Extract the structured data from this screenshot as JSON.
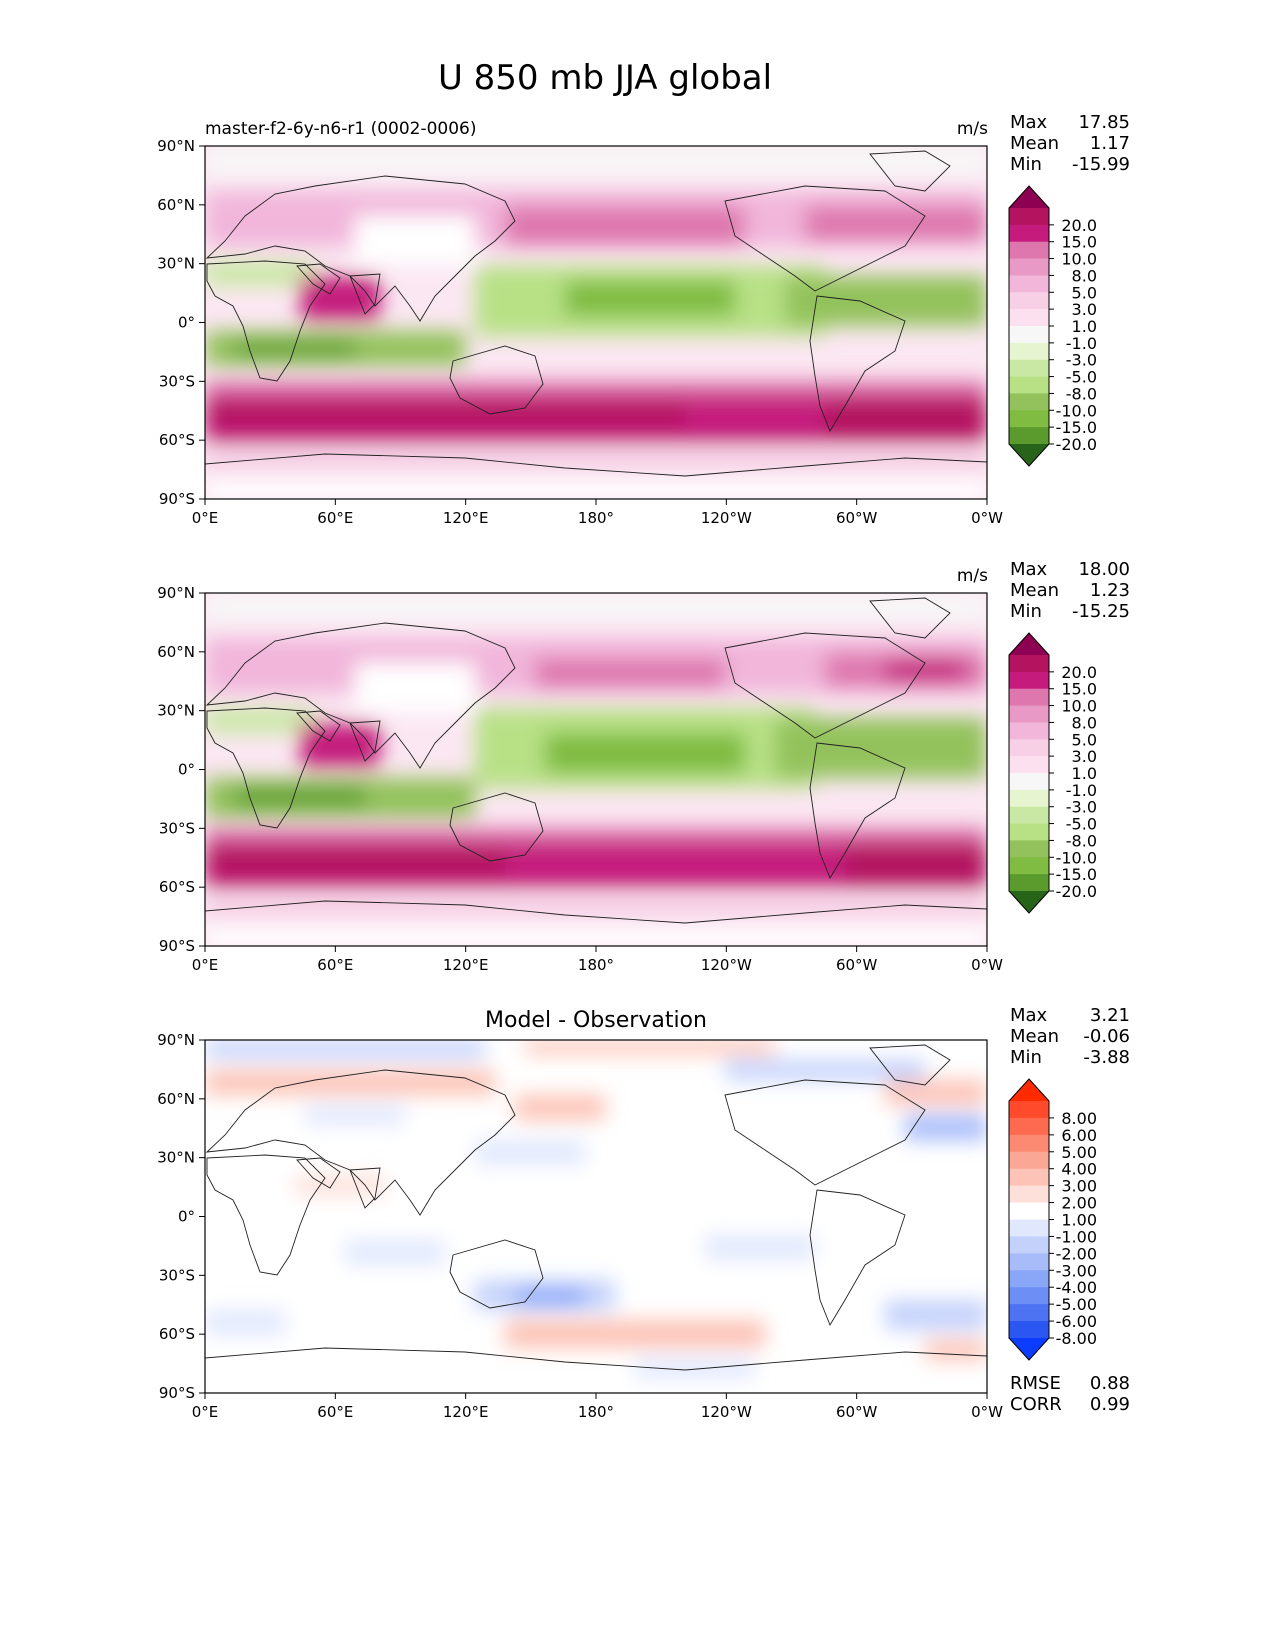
{
  "figure": {
    "title": "U 850 mb JJA global"
  },
  "chart_data": [
    {
      "type": "heatmap",
      "panel": "model",
      "subtitle_left": "master-f2-6y-n6-r1 (0002-0006)",
      "units": "m/s",
      "stats": {
        "max_label": "Max",
        "max": "17.85",
        "mean_label": "Mean",
        "mean": "1.17",
        "min_label": "Min",
        "min": "-15.99"
      },
      "x_ticks": [
        "0°E",
        "60°E",
        "120°E",
        "180°",
        "120°W",
        "60°W",
        "0°W"
      ],
      "y_ticks": [
        "90°N",
        "60°N",
        "30°N",
        "0°",
        "30°S",
        "60°S",
        "90°S"
      ],
      "xlim": [
        0,
        360
      ],
      "ylim": [
        -90,
        90
      ],
      "colorbar": {
        "labels": [
          "20.0",
          "15.0",
          "10.0",
          "8.0",
          "5.0",
          "3.0",
          "1.0",
          "-1.0",
          "-3.0",
          "-5.0",
          "-8.0",
          "-10.0",
          "-15.0",
          "-20.0"
        ],
        "colors": [
          "#8e0152",
          "#b3135f",
          "#c51b7d",
          "#de77ae",
          "#e899c5",
          "#f1b6da",
          "#f7d0e6",
          "#fde0ef",
          "#f7f7f7",
          "#e6f5d0",
          "#c9e8a4",
          "#b8e186",
          "#93c25c",
          "#7fbc41",
          "#5b9b2e",
          "#276419"
        ]
      },
      "annotations": []
    },
    {
      "type": "heatmap",
      "panel": "observation",
      "subtitle_left": "",
      "units": "m/s",
      "stats": {
        "max_label": "Max",
        "max": "18.00",
        "mean_label": "Mean",
        "mean": "1.23",
        "min_label": "Min",
        "min": "-15.25"
      },
      "x_ticks": [
        "0°E",
        "60°E",
        "120°E",
        "180°",
        "120°W",
        "60°W",
        "0°W"
      ],
      "y_ticks": [
        "90°N",
        "60°N",
        "30°N",
        "0°",
        "30°S",
        "60°S",
        "90°S"
      ],
      "xlim": [
        0,
        360
      ],
      "ylim": [
        -90,
        90
      ],
      "colorbar": {
        "labels": [
          "20.0",
          "15.0",
          "10.0",
          "8.0",
          "5.0",
          "3.0",
          "1.0",
          "-1.0",
          "-3.0",
          "-5.0",
          "-8.0",
          "-10.0",
          "-15.0",
          "-20.0"
        ],
        "colors": [
          "#8e0152",
          "#b3135f",
          "#c51b7d",
          "#de77ae",
          "#e899c5",
          "#f1b6da",
          "#f7d0e6",
          "#fde0ef",
          "#f7f7f7",
          "#e6f5d0",
          "#c9e8a4",
          "#b8e186",
          "#93c25c",
          "#7fbc41",
          "#5b9b2e",
          "#276419"
        ]
      }
    },
    {
      "type": "heatmap",
      "panel": "difference",
      "subtitle_center": "Model - Observation",
      "units": "",
      "stats": {
        "max_label": "Max",
        "max": "3.21",
        "mean_label": "Mean",
        "mean": "-0.06",
        "min_label": "Min",
        "min": "-3.88"
      },
      "x_ticks": [
        "0°E",
        "60°E",
        "120°E",
        "180°",
        "120°W",
        "60°W",
        "0°W"
      ],
      "y_ticks": [
        "90°N",
        "60°N",
        "30°N",
        "0°",
        "30°S",
        "60°S",
        "90°S"
      ],
      "xlim": [
        0,
        360
      ],
      "ylim": [
        -90,
        90
      ],
      "colorbar": {
        "labels": [
          "8.00",
          "6.00",
          "5.00",
          "4.00",
          "3.00",
          "2.00",
          "1.00",
          "-1.00",
          "-2.00",
          "-3.00",
          "-4.00",
          "-5.00",
          "-6.00",
          "-8.00"
        ],
        "colors": [
          "#ff2a00",
          "#ff4b2b",
          "#fe6a4f",
          "#fc8a72",
          "#fba796",
          "#fcc3b6",
          "#fde0d9",
          "#ffffff",
          "#e1e8fd",
          "#c4d2fb",
          "#a7bcf9",
          "#8aa6f7",
          "#6d8ff5",
          "#4d73f3",
          "#2c56f1",
          "#0b3cff"
        ]
      },
      "error_stats": {
        "rmse_label": "RMSE",
        "rmse": "0.88",
        "corr_label": "CORR",
        "corr": "0.99"
      }
    }
  ]
}
